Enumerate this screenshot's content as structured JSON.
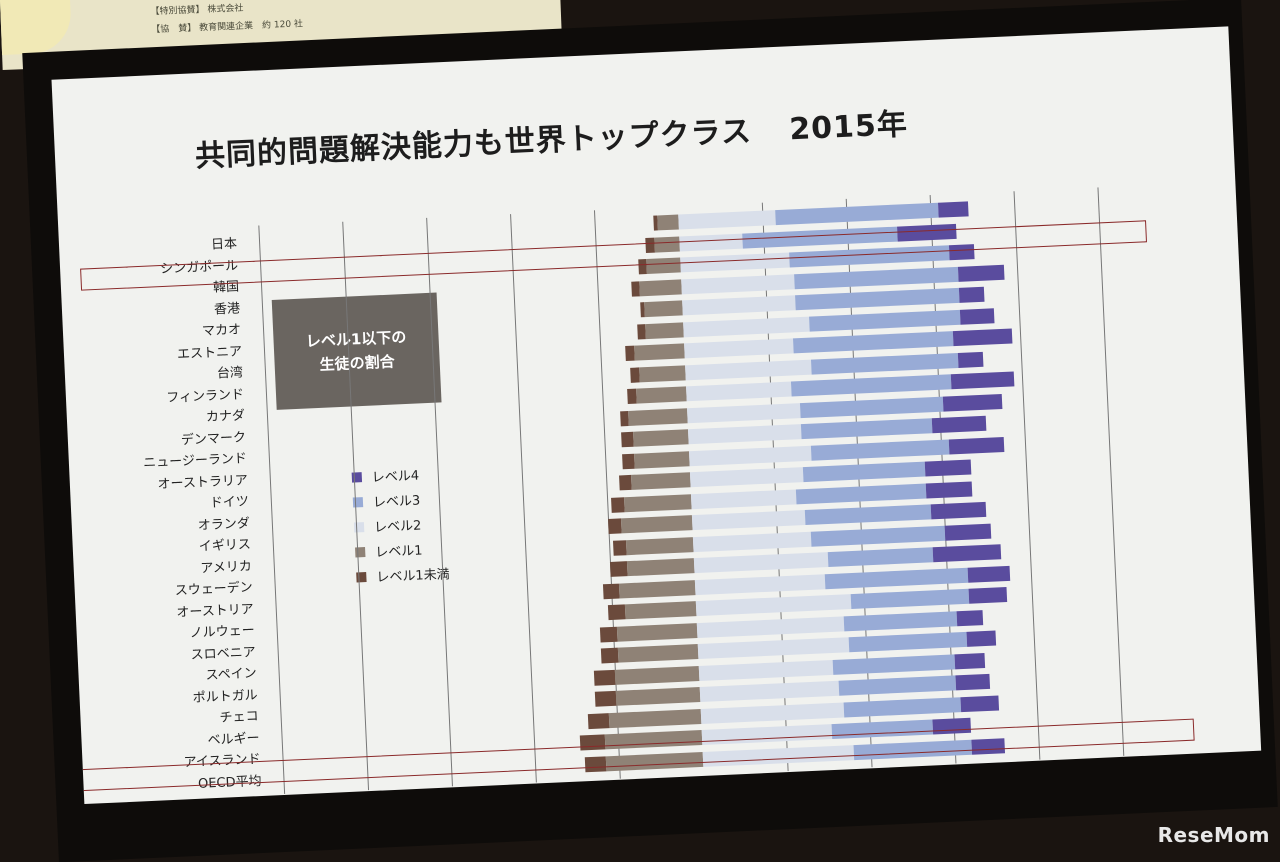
{
  "poster": {
    "row1_label": "【特別協賛】",
    "row1_text": "株式会社",
    "row2_label": "【協　賛】",
    "row2_text": "教育関連企業　約 120 社"
  },
  "slide": {
    "title_main": "共同的問題解決能力も世界トップクラス",
    "title_year": "2015年",
    "note_line1": "レベル1以下の",
    "note_line2": "生徒の割合"
  },
  "legend": [
    {
      "label": "レベル4",
      "color": "#5a4c9e"
    },
    {
      "label": "レベル3",
      "color": "#98abd6"
    },
    {
      "label": "レベル2",
      "color": "#d9dfea"
    },
    {
      "label": "レベル1",
      "color": "#8f8276"
    },
    {
      "label": "レベル1未満",
      "color": "#6b4a3c"
    }
  ],
  "watermark": "ReseMom",
  "chart_data": {
    "type": "bar",
    "stacked": true,
    "orientation": "horizontal",
    "title": "共同的問題解決能力も世界トップクラス　2015年",
    "categories": [
      "日本",
      "シンガポール",
      "韓国",
      "香港",
      "マカオ",
      "エストニア",
      "台湾",
      "フィンランド",
      "カナダ",
      "デンマーク",
      "ニュージーランド",
      "オーストラリア",
      "ドイツ",
      "オランダ",
      "イギリス",
      "アメリカ",
      "スウェーデン",
      "オーストリア",
      "ノルウェー",
      "スロベニア",
      "スペイン",
      "ポルトガル",
      "チェコ",
      "ベルギー",
      "アイスランド",
      "OECD平均"
    ],
    "xlim": [
      -60,
      100
    ],
    "series": [
      {
        "name": "レベル1未満",
        "values": [
          1,
          2,
          2,
          2,
          1,
          2,
          2,
          2,
          2,
          2,
          3,
          3,
          3,
          3,
          3,
          3,
          4,
          4,
          4,
          4,
          4,
          5,
          5,
          5,
          6,
          5
        ]
      },
      {
        "name": "レベル1",
        "values": [
          5,
          6,
          8,
          10,
          9,
          9,
          12,
          11,
          12,
          14,
          13,
          13,
          14,
          16,
          17,
          16,
          16,
          18,
          17,
          19,
          19,
          20,
          20,
          22,
          23,
          23
        ]
      },
      {
        "name": "レベル2",
        "values": [
          23,
          15,
          26,
          27,
          27,
          30,
          26,
          30,
          25,
          27,
          27,
          29,
          27,
          25,
          27,
          28,
          32,
          31,
          37,
          35,
          36,
          32,
          33,
          34,
          31,
          36
        ]
      },
      {
        "name": "レベル3",
        "values": [
          39,
          37,
          38,
          39,
          39,
          36,
          38,
          35,
          38,
          34,
          31,
          33,
          29,
          31,
          30,
          32,
          25,
          34,
          28,
          27,
          28,
          29,
          28,
          28,
          24,
          28
        ]
      },
      {
        "name": "レベル4",
        "values": [
          7,
          14,
          6,
          11,
          6,
          8,
          14,
          6,
          15,
          14,
          13,
          13,
          11,
          11,
          13,
          11,
          16,
          10,
          9,
          6,
          7,
          7,
          8,
          9,
          9,
          8
        ]
      }
    ]
  }
}
